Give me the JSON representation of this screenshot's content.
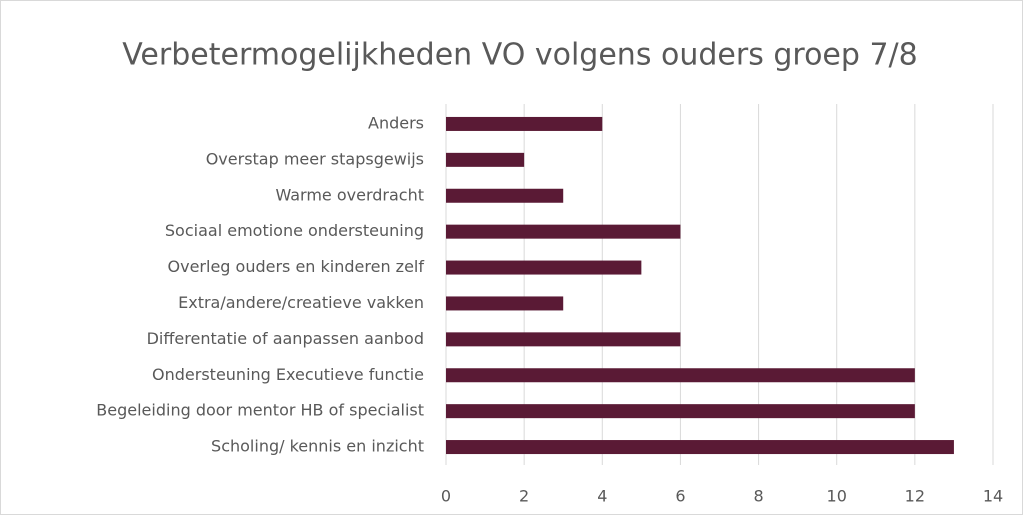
{
  "chart_data": {
    "type": "bar",
    "orientation": "horizontal",
    "title": "Verbetermogelijkheden VO volgens ouders groep 7/8",
    "categories": [
      "Anders",
      "Overstap meer stapsgewijs",
      "Warme overdracht",
      "Sociaal emotione ondersteuning",
      "Overleg ouders en kinderen zelf",
      "Extra/andere/creatieve vakken",
      "Differentatie of aanpassen aanbod",
      "Ondersteuning Executieve functie",
      "Begeleiding door mentor HB of specialist",
      "Scholing/ kennis en inzicht"
    ],
    "values": [
      4,
      2,
      3,
      6,
      5,
      3,
      6,
      12,
      12,
      13
    ],
    "color": "#5a1a35",
    "xlim": [
      0,
      14
    ],
    "xticks": [
      0,
      2,
      4,
      6,
      8,
      10,
      12,
      14
    ],
    "grid": true
  }
}
